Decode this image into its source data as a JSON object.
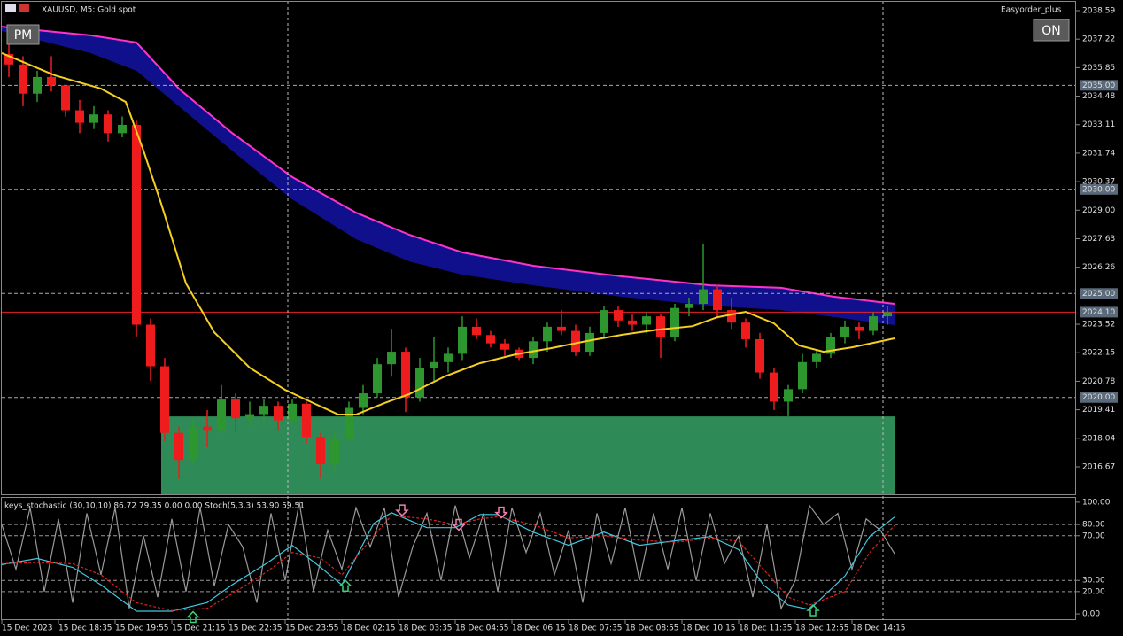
{
  "chart_data": [
    {
      "type": "candlestick",
      "title": "XAUUSD, M5:  Gold spot",
      "button_left": "PM",
      "button_right": "ON",
      "expert": "Easyorder_plus",
      "up_color": "#2e962e",
      "down_color": "#ee1c1c",
      "xlim": [
        0,
        303
      ],
      "ylim": [
        2015.35,
        2039.1
      ],
      "yticks": [
        2038.59,
        2037.22,
        2035.85,
        2034.48,
        2033.11,
        2031.74,
        2030.37,
        {
          "value": 2029,
          "label": "2029.00"
        },
        2027.63,
        2026.26,
        2023.52,
        2022.15,
        2020.78,
        2019.41,
        2018.04,
        2016.67
      ],
      "levels": [
        {
          "value": 2035,
          "label": "2035.00"
        },
        {
          "value": 2030,
          "label": "2030.00"
        },
        {
          "value": 2025,
          "label": "2025.00"
        },
        {
          "value": 2020,
          "label": "2020.00"
        }
      ],
      "current": {
        "value": 2024.1,
        "label": "2024.10",
        "color": "#e8202a"
      },
      "zone": {
        "color": "#2e8b57",
        "x": [
          45,
          252
        ],
        "y": [
          2015.35,
          2019.09
        ]
      },
      "band": {
        "upper_color": "#ff33cc",
        "fill": "#10108c",
        "x": [
          0,
          25,
          38,
          50,
          65,
          82,
          100,
          115,
          130,
          150,
          175,
          200,
          220,
          235,
          252
        ],
        "upper": [
          2037.82,
          2037.4,
          2037.06,
          2034.84,
          2032.71,
          2030.59,
          2028.88,
          2027.82,
          2026.97,
          2026.33,
          2025.82,
          2025.39,
          2025.27,
          2024.84,
          2024.5
        ],
        "lower": [
          2037.61,
          2036.55,
          2035.7,
          2033.99,
          2031.86,
          2029.52,
          2027.61,
          2026.54,
          2025.9,
          2025.39,
          2024.84,
          2024.41,
          2024.2,
          2023.86,
          2023.48
        ]
      },
      "ma": {
        "color": "#f5d020",
        "x": [
          0,
          15,
          28,
          35,
          40,
          45,
          52,
          60,
          70,
          80,
          88,
          95,
          100,
          108,
          115,
          125,
          135,
          145,
          155,
          165,
          175,
          185,
          195,
          202,
          210,
          218,
          225,
          232,
          240,
          252
        ],
        "values": [
          2036.55,
          2035.48,
          2034.84,
          2034.2,
          2031.86,
          2029.31,
          2025.48,
          2023.13,
          2021.43,
          2020.37,
          2019.73,
          2019.18,
          2019.18,
          2019.73,
          2020.16,
          2021.01,
          2021.65,
          2022.07,
          2022.37,
          2022.71,
          2023.01,
          2023.26,
          2023.43,
          2023.86,
          2024.12,
          2023.56,
          2022.5,
          2022.2,
          2022.41,
          2022.84
        ]
      },
      "x": [
        2,
        6,
        10,
        14,
        18,
        22,
        26,
        30,
        34,
        38,
        42,
        46,
        50,
        54,
        58,
        62,
        66,
        70,
        74,
        78,
        82,
        86,
        90,
        94,
        98,
        102,
        106,
        110,
        114,
        118,
        122,
        126,
        130,
        134,
        138,
        142,
        146,
        150,
        154,
        158,
        162,
        166,
        170,
        174,
        178,
        182,
        186,
        190,
        194,
        198,
        202,
        206,
        210,
        214,
        218,
        222,
        226,
        230,
        234,
        238,
        242,
        246,
        250
      ],
      "candles": [
        {
          "o": 2036.5,
          "h": 2037.3,
          "l": 2035.4,
          "c": 2036.0
        },
        {
          "o": 2036.0,
          "h": 2036.4,
          "l": 2034.0,
          "c": 2034.6
        },
        {
          "o": 2034.6,
          "h": 2035.7,
          "l": 2034.2,
          "c": 2035.4
        },
        {
          "o": 2035.4,
          "h": 2036.4,
          "l": 2034.7,
          "c": 2035.0
        },
        {
          "o": 2035.0,
          "h": 2035.0,
          "l": 2033.5,
          "c": 2033.8
        },
        {
          "o": 2033.8,
          "h": 2034.3,
          "l": 2032.7,
          "c": 2033.2
        },
        {
          "o": 2033.2,
          "h": 2034.0,
          "l": 2032.9,
          "c": 2033.6
        },
        {
          "o": 2033.6,
          "h": 2033.8,
          "l": 2032.3,
          "c": 2032.7
        },
        {
          "o": 2032.7,
          "h": 2033.5,
          "l": 2032.5,
          "c": 2033.1
        },
        {
          "o": 2033.1,
          "h": 2033.3,
          "l": 2022.9,
          "c": 2023.5
        },
        {
          "o": 2023.5,
          "h": 2023.8,
          "l": 2020.8,
          "c": 2021.5
        },
        {
          "o": 2021.5,
          "h": 2021.9,
          "l": 2017.9,
          "c": 2018.3
        },
        {
          "o": 2018.3,
          "h": 2018.6,
          "l": 2016.1,
          "c": 2017.0
        },
        {
          "o": 2017.0,
          "h": 2019.0,
          "l": 2016.8,
          "c": 2018.6
        },
        {
          "o": 2018.6,
          "h": 2019.4,
          "l": 2017.6,
          "c": 2018.4
        },
        {
          "o": 2018.4,
          "h": 2020.6,
          "l": 2018.0,
          "c": 2019.9
        },
        {
          "o": 2019.9,
          "h": 2020.2,
          "l": 2018.3,
          "c": 2019.0
        },
        {
          "o": 2019.0,
          "h": 2019.8,
          "l": 2018.6,
          "c": 2019.2
        },
        {
          "o": 2019.2,
          "h": 2019.9,
          "l": 2018.7,
          "c": 2019.6
        },
        {
          "o": 2019.6,
          "h": 2019.8,
          "l": 2018.4,
          "c": 2018.9
        },
        {
          "o": 2018.9,
          "h": 2019.9,
          "l": 2018.7,
          "c": 2019.7
        },
        {
          "o": 2019.7,
          "h": 2019.8,
          "l": 2017.8,
          "c": 2018.1
        },
        {
          "o": 2018.1,
          "h": 2018.3,
          "l": 2016.1,
          "c": 2016.8
        },
        {
          "o": 2016.8,
          "h": 2018.4,
          "l": 2016.4,
          "c": 2018.0
        },
        {
          "o": 2018.0,
          "h": 2019.8,
          "l": 2017.9,
          "c": 2019.5
        },
        {
          "o": 2019.5,
          "h": 2020.6,
          "l": 2019.2,
          "c": 2020.2
        },
        {
          "o": 2020.2,
          "h": 2021.9,
          "l": 2020.0,
          "c": 2021.6
        },
        {
          "o": 2021.6,
          "h": 2023.3,
          "l": 2021.0,
          "c": 2022.2
        },
        {
          "o": 2022.2,
          "h": 2022.4,
          "l": 2019.3,
          "c": 2020.0
        },
        {
          "o": 2020.0,
          "h": 2021.9,
          "l": 2019.8,
          "c": 2021.4
        },
        {
          "o": 2021.4,
          "h": 2022.9,
          "l": 2020.8,
          "c": 2021.7
        },
        {
          "o": 2021.7,
          "h": 2022.4,
          "l": 2021.2,
          "c": 2022.1
        },
        {
          "o": 2022.1,
          "h": 2023.9,
          "l": 2021.8,
          "c": 2023.4
        },
        {
          "o": 2023.4,
          "h": 2023.8,
          "l": 2022.8,
          "c": 2023.0
        },
        {
          "o": 2023.0,
          "h": 2023.2,
          "l": 2022.4,
          "c": 2022.6
        },
        {
          "o": 2022.6,
          "h": 2022.8,
          "l": 2022.0,
          "c": 2022.3
        },
        {
          "o": 2022.3,
          "h": 2022.4,
          "l": 2021.8,
          "c": 2021.9
        },
        {
          "o": 2021.9,
          "h": 2022.9,
          "l": 2021.6,
          "c": 2022.7
        },
        {
          "o": 2022.7,
          "h": 2023.6,
          "l": 2022.2,
          "c": 2023.4
        },
        {
          "o": 2023.4,
          "h": 2024.2,
          "l": 2023.0,
          "c": 2023.2
        },
        {
          "o": 2023.2,
          "h": 2023.5,
          "l": 2022.0,
          "c": 2022.2
        },
        {
          "o": 2022.2,
          "h": 2023.4,
          "l": 2022.0,
          "c": 2023.1
        },
        {
          "o": 2023.1,
          "h": 2024.4,
          "l": 2022.9,
          "c": 2024.2
        },
        {
          "o": 2024.2,
          "h": 2024.4,
          "l": 2023.4,
          "c": 2023.7
        },
        {
          "o": 2023.7,
          "h": 2024.0,
          "l": 2023.2,
          "c": 2023.5
        },
        {
          "o": 2023.5,
          "h": 2024.1,
          "l": 2023.1,
          "c": 2023.9
        },
        {
          "o": 2023.9,
          "h": 2024.0,
          "l": 2021.9,
          "c": 2022.9
        },
        {
          "o": 2022.9,
          "h": 2024.5,
          "l": 2022.7,
          "c": 2024.3
        },
        {
          "o": 2024.3,
          "h": 2024.8,
          "l": 2023.9,
          "c": 2024.5
        },
        {
          "o": 2024.5,
          "h": 2027.4,
          "l": 2024.2,
          "c": 2025.2
        },
        {
          "o": 2025.2,
          "h": 2025.4,
          "l": 2023.8,
          "c": 2024.2
        },
        {
          "o": 2024.2,
          "h": 2024.8,
          "l": 2023.3,
          "c": 2023.6
        },
        {
          "o": 2023.6,
          "h": 2023.8,
          "l": 2022.4,
          "c": 2022.8
        },
        {
          "o": 2022.8,
          "h": 2023.1,
          "l": 2020.9,
          "c": 2021.2
        },
        {
          "o": 2021.2,
          "h": 2021.4,
          "l": 2019.4,
          "c": 2019.8
        },
        {
          "o": 2019.8,
          "h": 2020.6,
          "l": 2019.1,
          "c": 2020.4
        },
        {
          "o": 2020.4,
          "h": 2022.1,
          "l": 2020.2,
          "c": 2021.7
        },
        {
          "o": 2021.7,
          "h": 2022.3,
          "l": 2021.4,
          "c": 2022.1
        },
        {
          "o": 2022.1,
          "h": 2023.1,
          "l": 2021.9,
          "c": 2022.9
        },
        {
          "o": 2022.9,
          "h": 2023.7,
          "l": 2022.6,
          "c": 2023.4
        },
        {
          "o": 2023.4,
          "h": 2023.6,
          "l": 2022.8,
          "c": 2023.2
        },
        {
          "o": 2023.2,
          "h": 2024.1,
          "l": 2023.0,
          "c": 2023.9
        },
        {
          "o": 2023.9,
          "h": 2024.4,
          "l": 2023.5,
          "c": 2024.1
        }
      ]
    },
    {
      "type": "line",
      "title": "keys_stochastic (30,10,10) 86.72 79.35 0.00 0.00 Stoch(5,3,3) 53.90 59.51",
      "xlim": [
        0,
        303
      ],
      "ylim": [
        -5.5,
        104.7
      ],
      "yticks": [
        {
          "value": 100,
          "label": "100.00"
        },
        {
          "value": 80,
          "label": "80.00"
        },
        {
          "value": 70,
          "label": "70.00"
        },
        {
          "value": 30,
          "label": "30.00"
        },
        {
          "value": 20,
          "label": "20.00"
        },
        {
          "value": 0,
          "label": "0.00"
        }
      ],
      "levels": [
        80,
        70,
        30,
        20
      ],
      "xticks": [
        {
          "value": 0,
          "label": "15 Dec 2023"
        },
        {
          "value": 16,
          "label": "15 Dec 18:35"
        },
        {
          "value": 32,
          "label": "15 Dec 19:55"
        },
        {
          "value": 48,
          "label": "15 Dec 21:15"
        },
        {
          "value": 64,
          "label": "15 Dec 22:35"
        },
        {
          "value": 80,
          "label": "15 Dec 23:55"
        },
        {
          "value": 96,
          "label": "18 Dec 02:15"
        },
        {
          "value": 112,
          "label": "18 Dec 03:35"
        },
        {
          "value": 128,
          "label": "18 Dec 04:55"
        },
        {
          "value": 144,
          "label": "18 Dec 06:15"
        },
        {
          "value": 160,
          "label": "18 Dec 07:35"
        },
        {
          "value": 176,
          "label": "18 Dec 08:55"
        },
        {
          "value": 192,
          "label": "18 Dec 10:15"
        },
        {
          "value": 208,
          "label": "18 Dec 11:35"
        },
        {
          "value": 224,
          "label": "18 Dec 12:55"
        },
        {
          "value": 240,
          "label": "18 Dec 14:15"
        }
      ],
      "series": [
        {
          "color": "#9a9a9a",
          "dashed": false,
          "x": [
            0,
            4,
            8,
            12,
            16,
            20,
            24,
            28,
            32,
            36,
            40,
            44,
            48,
            52,
            56,
            60,
            64,
            68,
            72,
            76,
            80,
            84,
            88,
            92,
            96,
            100,
            104,
            108,
            112,
            116,
            120,
            124,
            128,
            132,
            136,
            140,
            144,
            148,
            152,
            156,
            160,
            164,
            168,
            172,
            176,
            180,
            184,
            188,
            192,
            196,
            200,
            204,
            208,
            212,
            216,
            220,
            224,
            228,
            232,
            236,
            240,
            244,
            248,
            252
          ],
          "values": [
            80,
            40,
            95,
            20,
            85,
            10,
            90,
            35,
            95,
            5,
            70,
            15,
            85,
            20,
            95,
            25,
            80,
            60,
            10,
            90,
            30,
            100,
            20,
            75,
            40,
            95,
            60,
            95,
            15,
            60,
            90,
            30,
            97,
            50,
            90,
            20,
            95,
            55,
            90,
            35,
            75,
            10,
            90,
            45,
            95,
            30,
            90,
            40,
            95,
            30,
            90,
            45,
            70,
            15,
            80,
            5,
            30,
            97,
            80,
            90,
            40,
            85,
            75,
            53.9
          ]
        },
        {
          "color": "#40c8e0",
          "dashed": false,
          "x": [
            0,
            10,
            20,
            28,
            38,
            48,
            58,
            65,
            75,
            82,
            90,
            96,
            105,
            110,
            120,
            128,
            135,
            140,
            150,
            160,
            170,
            180,
            190,
            200,
            208,
            215,
            222,
            228,
            238,
            245,
            252
          ],
          "values": [
            44.1,
            49.6,
            41.7,
            26,
            2.4,
            2.4,
            10.2,
            26,
            45.7,
            61.4,
            41.7,
            26,
            81.1,
            90.6,
            77.2,
            77.2,
            89,
            89,
            73.2,
            61.4,
            73.2,
            61.4,
            65.4,
            69.3,
            57.5,
            26,
            7.9,
            3.9,
            33.9,
            69.3,
            86.72
          ]
        },
        {
          "color": "#e02020",
          "dashed": true,
          "x": [
            0,
            10,
            20,
            28,
            38,
            48,
            58,
            65,
            75,
            82,
            90,
            96,
            105,
            110,
            120,
            128,
            135,
            140,
            150,
            160,
            170,
            180,
            190,
            200,
            208,
            215,
            222,
            228,
            238,
            245,
            252
          ],
          "values": [
            45,
            46,
            45,
            35,
            10,
            3,
            5,
            18,
            38,
            55,
            50,
            35,
            70,
            88,
            85,
            80,
            85,
            87,
            80,
            68,
            70,
            66,
            64,
            68,
            65,
            40,
            15,
            8,
            20,
            55,
            79.35
          ]
        }
      ],
      "signals": {
        "up": {
          "color": "#3cd07a",
          "x": [
            54,
            97,
            229
          ],
          "values": [
            2,
            30,
            8
          ]
        },
        "down": {
          "color": "#f080b0",
          "x": [
            113,
            129,
            141
          ],
          "values": [
            88,
            75,
            86
          ]
        }
      }
    }
  ]
}
